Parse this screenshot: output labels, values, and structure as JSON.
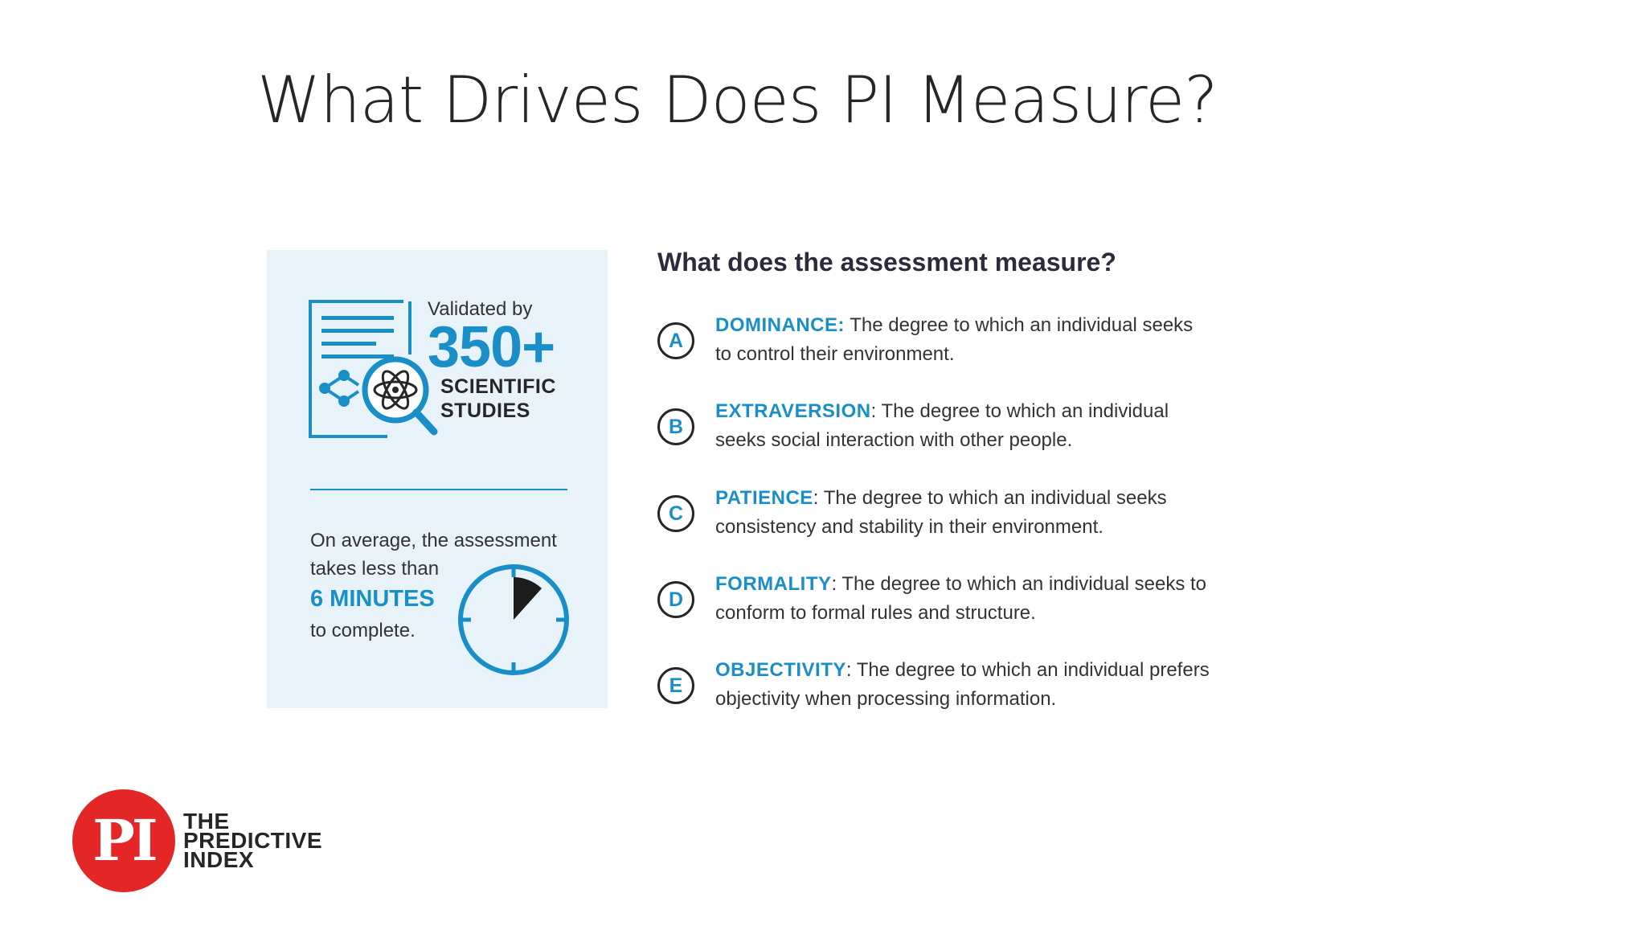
{
  "slide": {
    "title": "What Drives Does PI Measure?"
  },
  "card": {
    "validated_label": "Validated by",
    "count": "350+",
    "studies_label": "SCIENTIFIC\nSTUDIES",
    "time_line1": "On average, the assessment",
    "time_line2": "takes less than",
    "time_highlight": "6 MINUTES",
    "time_line3": "to complete."
  },
  "measures": {
    "heading": "What does the assessment measure?",
    "items": [
      {
        "letter": "A",
        "name": "DOMINANCE:",
        "description": " The degree to which an individual seeks to control their environment."
      },
      {
        "letter": "B",
        "name": "EXTRAVERSION",
        "description": ": The degree to which an individual seeks social interaction with other people."
      },
      {
        "letter": "C",
        "name": "PATIENCE",
        "description": ": The degree to which an individual seeks consistency and stability in their environment."
      },
      {
        "letter": "D",
        "name": "FORMALITY",
        "description": ": The degree to which an individual seeks to conform to formal rules and structure."
      },
      {
        "letter": "E",
        "name": "OBJECTIVITY",
        "description": ": The degree to which an individual prefers objectivity when processing information."
      }
    ]
  },
  "logo": {
    "letters": "PI",
    "wordmark": "THE\nPREDICTIVE\nINDEX"
  },
  "colors": {
    "accent_blue": "#1a8ec7",
    "card_background": "#e7f3f8",
    "logo_red": "#e32726"
  }
}
